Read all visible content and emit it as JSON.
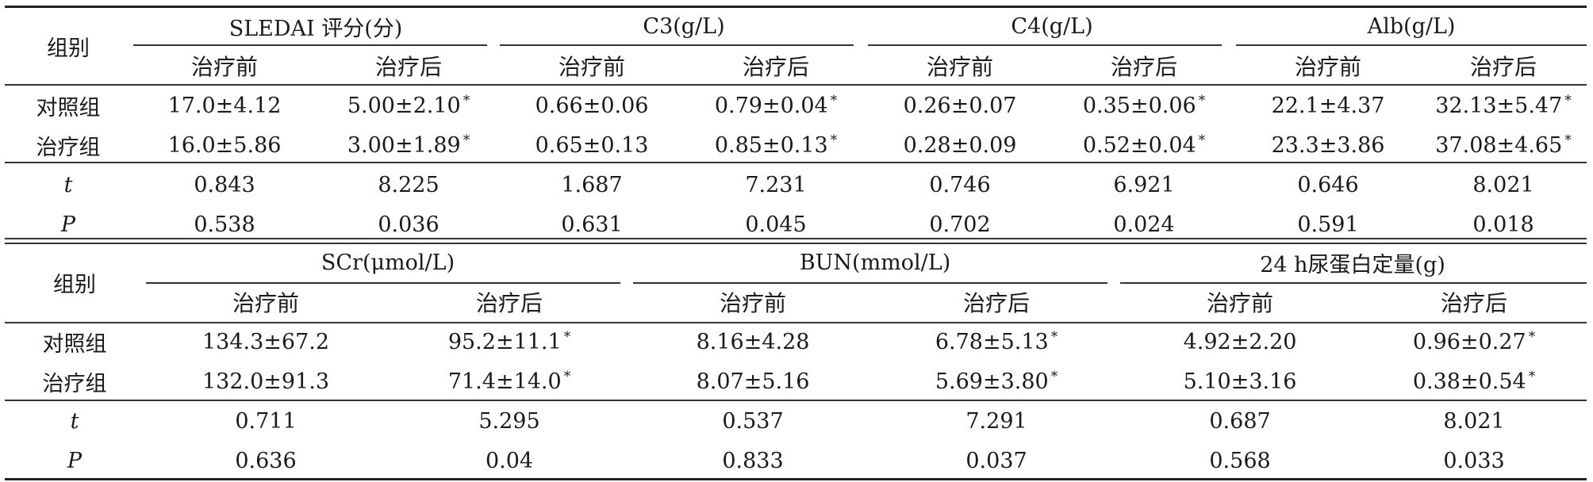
{
  "table1": {
    "group_header": "组别",
    "groups": [
      "SLEDAI 评分(分)",
      "C3(g/L)",
      "C4(g/L)",
      "Alb(g/L)"
    ],
    "sub_headers": [
      "治疗前",
      "治疗后",
      "治疗前",
      "治疗后",
      "治疗前",
      "治疗后",
      "治疗前",
      "治疗后"
    ],
    "rows": [
      {
        "label": "对照组",
        "cells": [
          "17.0±4.12",
          "5.00±2.10",
          "0.66±0.06",
          "0.79±0.04",
          "0.26±0.07",
          "0.35±0.06",
          "22.1±4.37",
          "32.13±5.47"
        ]
      },
      {
        "label": "治疗组",
        "cells": [
          "16.0±5.86",
          "3.00±1.89",
          "0.65±0.13",
          "0.85±0.13",
          "0.28±0.09",
          "0.52±0.04",
          "23.3±3.86",
          "37.08±4.65"
        ]
      },
      {
        "label": "t",
        "cells": [
          "0.843",
          "8.225",
          "1.687",
          "7.231",
          "0.746",
          "6.921",
          "0.646",
          "8.021"
        ]
      },
      {
        "label": "P",
        "cells": [
          "0.538",
          "0.036",
          "0.631",
          "0.045",
          "0.702",
          "0.024",
          "0.591",
          "0.018"
        ]
      }
    ]
  },
  "table2": {
    "group_header": "组别",
    "groups": [
      "SCr(μmol/L)",
      "BUN(mmol/L)",
      "24 h尿蛋白定量(g)"
    ],
    "sub_headers": [
      "治疗前",
      "治疗后",
      "治疗前",
      "治疗后",
      "治疗前",
      "治疗后"
    ],
    "rows": [
      {
        "label": "对照组",
        "cells": [
          "134.3±67.2",
          "95.2±11.1",
          "8.16±4.28",
          "6.78±5.13",
          "4.92±2.20",
          "0.96±0.27"
        ]
      },
      {
        "label": "治疗组",
        "cells": [
          "132.0±91.3",
          "71.4±14.0",
          "8.07±5.16",
          "5.69±3.80",
          "5.10±3.16",
          "0.38±0.54"
        ]
      },
      {
        "label": "t",
        "cells": [
          "0.711",
          "5.295",
          "0.537",
          "7.291",
          "0.687",
          "8.021"
        ]
      },
      {
        "label": "P",
        "cells": [
          "0.636",
          "0.04",
          "0.833",
          "0.037",
          "0.568",
          "0.033"
        ]
      }
    ]
  },
  "significance_mark": "*"
}
